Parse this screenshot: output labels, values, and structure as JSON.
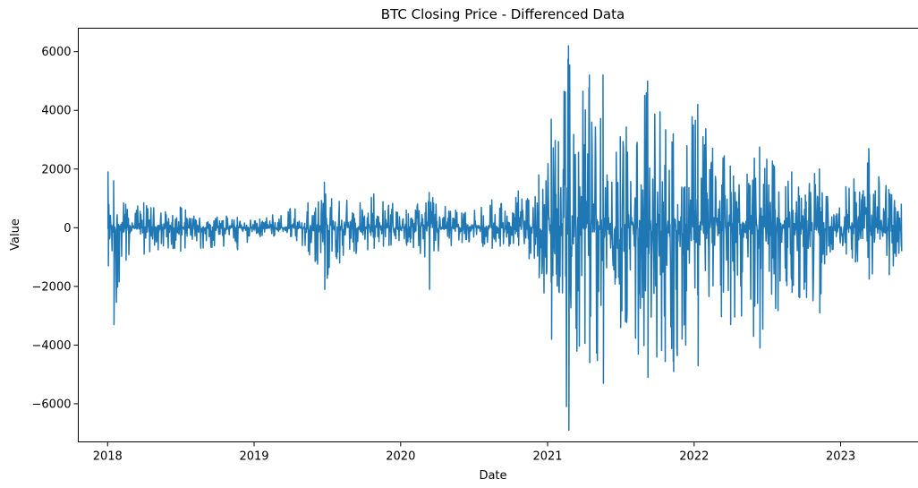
{
  "chart_data": {
    "type": "line",
    "title": "BTC Closing Price - Differenced Data",
    "xlabel": "Date",
    "ylabel": "Value",
    "x_ticks": [
      "2018",
      "2019",
      "2020",
      "2021",
      "2022",
      "2023"
    ],
    "y_ticks": [
      -6000,
      -4000,
      -2000,
      0,
      2000,
      4000,
      6000
    ],
    "x_range": [
      "2017-10-20",
      "2023-08-05"
    ],
    "ylim": [
      -7300,
      6800
    ],
    "grid": false,
    "legend": "none",
    "color": "#1f77b4",
    "series": [
      {
        "x_start": "2018-01-02",
        "x_end": "2023-06-01",
        "frequency": "daily",
        "envelope": [
          {
            "date": "2018-01-02",
            "min": -1300,
            "max": 1900
          },
          {
            "date": "2018-01-16",
            "min": -3300,
            "max": 1600
          },
          {
            "date": "2018-02-15",
            "min": -1100,
            "max": 800
          },
          {
            "date": "2018-04-01",
            "min": -900,
            "max": 850
          },
          {
            "date": "2018-07-01",
            "min": -800,
            "max": 700
          },
          {
            "date": "2018-11-20",
            "min": -750,
            "max": 350
          },
          {
            "date": "2019-01-15",
            "min": -300,
            "max": 300
          },
          {
            "date": "2019-04-01",
            "min": -300,
            "max": 650
          },
          {
            "date": "2019-05-15",
            "min": -800,
            "max": 850
          },
          {
            "date": "2019-06-25",
            "min": -2100,
            "max": 1550
          },
          {
            "date": "2019-08-01",
            "min": -1200,
            "max": 900
          },
          {
            "date": "2019-10-26",
            "min": -700,
            "max": 1150
          },
          {
            "date": "2020-01-15",
            "min": -600,
            "max": 600
          },
          {
            "date": "2020-03-12",
            "min": -2100,
            "max": 1200
          },
          {
            "date": "2020-06-01",
            "min": -500,
            "max": 500
          },
          {
            "date": "2020-08-15",
            "min": -700,
            "max": 950
          },
          {
            "date": "2020-10-20",
            "min": -600,
            "max": 1250
          },
          {
            "date": "2020-12-10",
            "min": -1700,
            "max": 1800
          },
          {
            "date": "2021-01-10",
            "min": -3800,
            "max": 3700
          },
          {
            "date": "2021-02-22",
            "min": -6900,
            "max": 6200
          },
          {
            "date": "2021-04-15",
            "min": -4600,
            "max": 5200
          },
          {
            "date": "2021-05-19",
            "min": -5300,
            "max": 5200
          },
          {
            "date": "2021-07-01",
            "min": -3400,
            "max": 3100
          },
          {
            "date": "2021-09-07",
            "min": -5100,
            "max": 5000
          },
          {
            "date": "2021-11-10",
            "min": -4900,
            "max": 3200
          },
          {
            "date": "2022-01-10",
            "min": -4700,
            "max": 4200
          },
          {
            "date": "2022-04-01",
            "min": -3300,
            "max": 2100
          },
          {
            "date": "2022-06-13",
            "min": -4100,
            "max": 2750
          },
          {
            "date": "2022-09-01",
            "min": -2200,
            "max": 1900
          },
          {
            "date": "2022-11-09",
            "min": -2900,
            "max": 2000
          },
          {
            "date": "2022-12-20",
            "min": -300,
            "max": 400
          },
          {
            "date": "2023-01-14",
            "min": -900,
            "max": 1400
          },
          {
            "date": "2023-03-12",
            "min": -1750,
            "max": 2700
          },
          {
            "date": "2023-05-01",
            "min": -1600,
            "max": 1300
          },
          {
            "date": "2023-06-01",
            "min": -800,
            "max": 800
          }
        ]
      }
    ]
  }
}
